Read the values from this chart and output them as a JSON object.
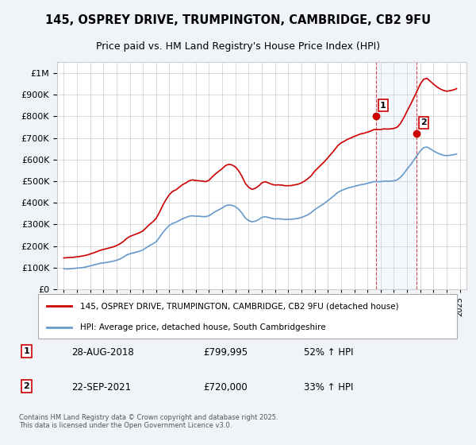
{
  "title": "145, OSPREY DRIVE, TRUMPINGTON, CAMBRIDGE, CB2 9FU",
  "subtitle": "Price paid vs. HM Land Registry's House Price Index (HPI)",
  "legend_line1": "145, OSPREY DRIVE, TRUMPINGTON, CAMBRIDGE, CB2 9FU (detached house)",
  "legend_line2": "HPI: Average price, detached house, South Cambridgeshire",
  "annotation1_label": "1",
  "annotation1_date": "28-AUG-2018",
  "annotation1_price": "£799,995",
  "annotation1_hpi": "52% ↑ HPI",
  "annotation1_year": 2018.65,
  "annotation1_value": 799995,
  "annotation2_label": "2",
  "annotation2_date": "22-SEP-2021",
  "annotation2_price": "£720,000",
  "annotation2_hpi": "33% ↑ HPI",
  "annotation2_year": 2021.72,
  "annotation2_value": 720000,
  "red_color": "#cc0000",
  "blue_color": "#6699cc",
  "background_color": "#f0f4f8",
  "plot_bg_color": "#ffffff",
  "grid_color": "#cccccc",
  "ylim_max": 1050000,
  "ylim_min": 0,
  "xlabel": "",
  "ylabel": "",
  "copyright_text": "Contains HM Land Registry data © Crown copyright and database right 2025.\nThis data is licensed under the Open Government Licence v3.0.",
  "hpi_years": [
    1995.0,
    1995.25,
    1995.5,
    1995.75,
    1996.0,
    1996.25,
    1996.5,
    1996.75,
    1997.0,
    1997.25,
    1997.5,
    1997.75,
    1998.0,
    1998.25,
    1998.5,
    1998.75,
    1999.0,
    1999.25,
    1999.5,
    1999.75,
    2000.0,
    2000.25,
    2000.5,
    2000.75,
    2001.0,
    2001.25,
    2001.5,
    2001.75,
    2002.0,
    2002.25,
    2002.5,
    2002.75,
    2003.0,
    2003.25,
    2003.5,
    2003.75,
    2004.0,
    2004.25,
    2004.5,
    2004.75,
    2005.0,
    2005.25,
    2005.5,
    2005.75,
    2006.0,
    2006.25,
    2006.5,
    2006.75,
    2007.0,
    2007.25,
    2007.5,
    2007.75,
    2008.0,
    2008.25,
    2008.5,
    2008.75,
    2009.0,
    2009.25,
    2009.5,
    2009.75,
    2010.0,
    2010.25,
    2010.5,
    2010.75,
    2011.0,
    2011.25,
    2011.5,
    2011.75,
    2012.0,
    2012.25,
    2012.5,
    2012.75,
    2013.0,
    2013.25,
    2013.5,
    2013.75,
    2014.0,
    2014.25,
    2014.5,
    2014.75,
    2015.0,
    2015.25,
    2015.5,
    2015.75,
    2016.0,
    2016.25,
    2016.5,
    2016.75,
    2017.0,
    2017.25,
    2017.5,
    2017.75,
    2018.0,
    2018.25,
    2018.5,
    2018.75,
    2019.0,
    2019.25,
    2019.5,
    2019.75,
    2020.0,
    2020.25,
    2020.5,
    2020.75,
    2021.0,
    2021.25,
    2021.5,
    2021.75,
    2022.0,
    2022.25,
    2022.5,
    2022.75,
    2023.0,
    2023.25,
    2023.5,
    2023.75,
    2024.0,
    2024.25,
    2024.5,
    2024.75
  ],
  "hpi_values": [
    95000,
    94000,
    94500,
    96000,
    98000,
    99000,
    101000,
    104000,
    108000,
    112000,
    116000,
    120000,
    122000,
    124000,
    127000,
    130000,
    134000,
    140000,
    148000,
    158000,
    164000,
    168000,
    172000,
    176000,
    182000,
    192000,
    202000,
    210000,
    220000,
    240000,
    262000,
    280000,
    295000,
    305000,
    310000,
    318000,
    326000,
    332000,
    338000,
    340000,
    338000,
    338000,
    336000,
    336000,
    340000,
    350000,
    360000,
    368000,
    376000,
    386000,
    390000,
    388000,
    382000,
    370000,
    352000,
    330000,
    318000,
    312000,
    315000,
    322000,
    332000,
    336000,
    332000,
    328000,
    325000,
    326000,
    325000,
    323000,
    323000,
    324000,
    326000,
    328000,
    332000,
    338000,
    345000,
    355000,
    368000,
    378000,
    388000,
    398000,
    410000,
    422000,
    434000,
    448000,
    456000,
    462000,
    468000,
    472000,
    476000,
    480000,
    484000,
    486000,
    490000,
    494000,
    498000,
    498000,
    498000,
    500000,
    500000,
    500000,
    502000,
    506000,
    518000,
    535000,
    556000,
    575000,
    596000,
    618000,
    640000,
    655000,
    658000,
    650000,
    640000,
    632000,
    625000,
    620000,
    618000,
    620000,
    622000,
    626000
  ],
  "price_years": [
    1995.0,
    1995.25,
    1995.5,
    1995.75,
    1996.0,
    1996.25,
    1996.5,
    1996.75,
    1997.0,
    1997.25,
    1997.5,
    1997.75,
    1998.0,
    1998.25,
    1998.5,
    1998.75,
    1999.0,
    1999.25,
    1999.5,
    1999.75,
    2000.0,
    2000.25,
    2000.5,
    2000.75,
    2001.0,
    2001.25,
    2001.5,
    2001.75,
    2002.0,
    2002.25,
    2002.5,
    2002.75,
    2003.0,
    2003.25,
    2003.5,
    2003.75,
    2004.0,
    2004.25,
    2004.5,
    2004.75,
    2005.0,
    2005.25,
    2005.5,
    2005.75,
    2006.0,
    2006.25,
    2006.5,
    2006.75,
    2007.0,
    2007.25,
    2007.5,
    2007.75,
    2008.0,
    2008.25,
    2008.5,
    2008.75,
    2009.0,
    2009.25,
    2009.5,
    2009.75,
    2010.0,
    2010.25,
    2010.5,
    2010.75,
    2011.0,
    2011.25,
    2011.5,
    2011.75,
    2012.0,
    2012.25,
    2012.5,
    2012.75,
    2013.0,
    2013.25,
    2013.5,
    2013.75,
    2014.0,
    2014.25,
    2014.5,
    2014.75,
    2015.0,
    2015.25,
    2015.5,
    2015.75,
    2016.0,
    2016.25,
    2016.5,
    2016.75,
    2017.0,
    2017.25,
    2017.5,
    2017.75,
    2018.0,
    2018.25,
    2018.5,
    2018.75,
    2019.0,
    2019.25,
    2019.5,
    2019.75,
    2020.0,
    2020.25,
    2020.5,
    2020.75,
    2021.0,
    2021.25,
    2021.5,
    2021.75,
    2022.0,
    2022.25,
    2022.5,
    2022.75,
    2023.0,
    2023.25,
    2023.5,
    2023.75,
    2024.0,
    2024.25,
    2024.5,
    2024.75
  ],
  "price_values": [
    145000,
    146000,
    147000,
    148000,
    150000,
    152000,
    155000,
    158000,
    163000,
    168000,
    174000,
    180000,
    184000,
    188000,
    192000,
    196000,
    202000,
    210000,
    220000,
    234000,
    244000,
    250000,
    256000,
    262000,
    270000,
    285000,
    300000,
    312000,
    328000,
    356000,
    388000,
    415000,
    438000,
    453000,
    460000,
    472000,
    484000,
    492000,
    502000,
    506000,
    503000,
    502000,
    500000,
    498000,
    504000,
    520000,
    534000,
    546000,
    558000,
    572000,
    578000,
    575000,
    566000,
    548000,
    522000,
    490000,
    472000,
    462000,
    467000,
    477000,
    492000,
    498000,
    492000,
    486000,
    482000,
    483000,
    482000,
    479000,
    479000,
    480000,
    483000,
    486000,
    492000,
    501000,
    512000,
    526000,
    546000,
    561000,
    576000,
    591000,
    608000,
    626000,
    644000,
    664000,
    677000,
    685000,
    694000,
    700000,
    707000,
    713000,
    719000,
    722000,
    727000,
    732000,
    739000,
    739000,
    739000,
    742000,
    741000,
    742000,
    744000,
    750000,
    767000,
    793000,
    824000,
    853000,
    884000,
    916000,
    949000,
    971000,
    976000,
    963000,
    949000,
    937000,
    927000,
    920000,
    916000,
    919000,
    922000,
    928000
  ]
}
